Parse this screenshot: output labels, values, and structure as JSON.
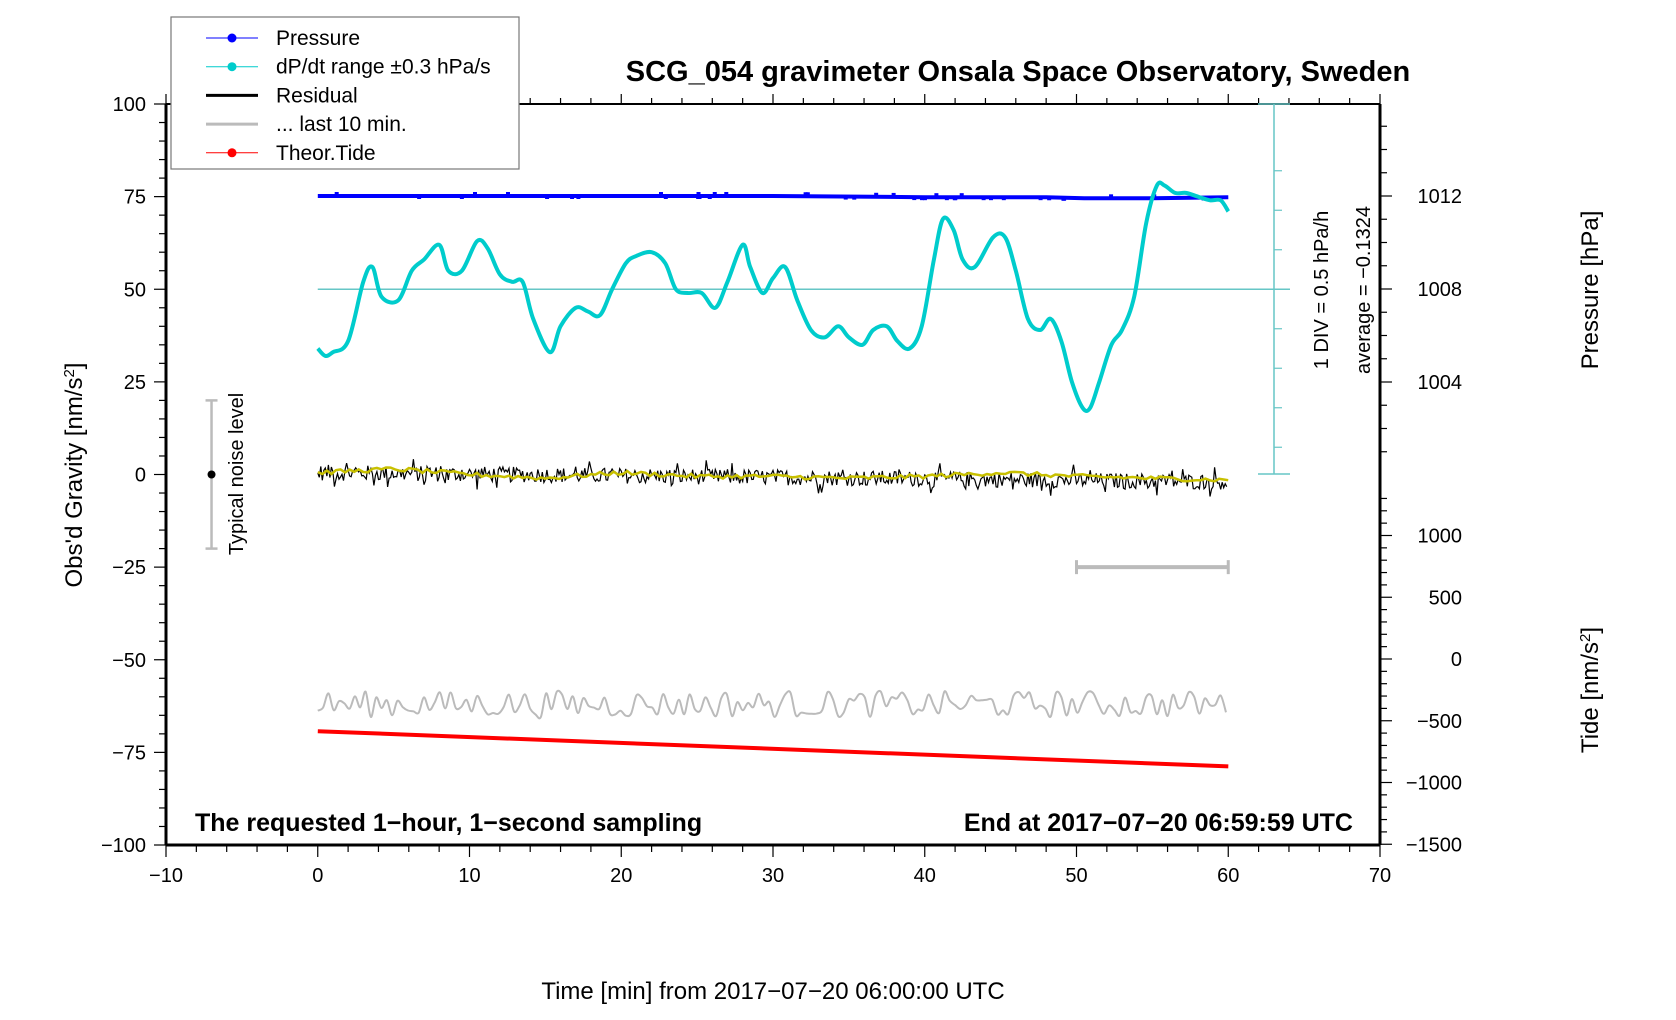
{
  "chart_data": {
    "type": "line",
    "title": "SCG_054 gravimeter Onsala Space Observatory, Sweden",
    "xlabel": "Time [min] from 2017−07−20 06:00:00 UTC",
    "ylabel": "Obs'd Gravity [nm/s²]",
    "ylabel_parts": {
      "main": "Obs'd Gravity [nm/s",
      "sup": "2",
      "end": "]"
    },
    "y2label": "Pressure [hPa]",
    "y3label_parts": {
      "main": "Tide [nm/s",
      "sup": "2",
      "end": "]"
    },
    "xlim": [
      -10,
      70
    ],
    "ylim": [
      -100,
      100
    ],
    "x_ticks": [
      "−10",
      "0",
      "10",
      "20",
      "30",
      "40",
      "50",
      "60",
      "70"
    ],
    "x_tick_values": [
      -10,
      0,
      10,
      20,
      30,
      40,
      50,
      60,
      70
    ],
    "y_ticks": [
      "100",
      "75",
      "50",
      "25",
      "0",
      "−25",
      "−50",
      "−75",
      "−100"
    ],
    "y_tick_values": [
      100,
      75,
      50,
      25,
      0,
      -25,
      -50,
      -75,
      -100
    ],
    "pressure_axis": {
      "label": "Pressure [hPa]",
      "ticks": [
        "1012",
        "1008",
        "1004"
      ],
      "tick_values": [
        1012,
        1008,
        1004
      ],
      "range": [
        1000,
        1014
      ]
    },
    "tide_axis": {
      "label": "Tide [nm/s²]",
      "ticks": [
        "1000",
        "500",
        "0",
        "−500",
        "−1000",
        "−1500"
      ],
      "tick_values": [
        1000,
        500,
        0,
        -500,
        -1000,
        -1500
      ],
      "range": [
        -1500,
        1500
      ]
    },
    "dpdt_scale": {
      "label": "1 DIV = 0.5 hPa/h",
      "average_label": "average = −0.1324",
      "reference_level": 50
    },
    "legend": {
      "position": "top-left",
      "entries": [
        {
          "label": "Pressure",
          "color": "#0000ff",
          "marker": "dot"
        },
        {
          "label": "dP/dt range ±0.3 hPa/s",
          "color": "#00cccc",
          "marker": "dot"
        },
        {
          "label": "Residual",
          "color": "#000000",
          "marker": "line"
        },
        {
          "label": "... last 10 min.",
          "color": "#bbbbbb",
          "marker": "line"
        },
        {
          "label": "Theor.Tide",
          "color": "#ff0000",
          "marker": "dot"
        }
      ]
    },
    "annotations": {
      "bottom_left": "The requested 1−hour, 1−second sampling",
      "bottom_right": "End at 2017−07−20 06:59:59 UTC",
      "noise_label": "Typical noise level",
      "noise_bar": {
        "x": -7,
        "center": 0,
        "half_range": 20
      },
      "last10_bar": {
        "x_start": 50,
        "x_end": 60,
        "y": -25
      }
    },
    "series": [
      {
        "name": "Pressure",
        "color": "#0000ff",
        "axis": "pressure",
        "x": [
          0,
          10,
          20,
          30,
          40,
          48,
          50.5,
          55,
          60
        ],
        "values": [
          1012.0,
          1012.0,
          1012.0,
          1012.0,
          1011.95,
          1011.95,
          1011.9,
          1011.9,
          1011.95
        ]
      },
      {
        "name": "dP/dt",
        "color": "#00cccc",
        "axis": "gravity-equivalent",
        "x": [
          0,
          0.5,
          1,
          2,
          3,
          3.6,
          4.2,
          5.3,
          6.2,
          7.0,
          8.0,
          8.6,
          9.5,
          10.5,
          11.2,
          12.0,
          12.8,
          13.5,
          14.2,
          15.3,
          16.0,
          17.0,
          17.8,
          18.6,
          19.4,
          20.3,
          21.0,
          22.0,
          22.9,
          23.6,
          24.4,
          25.3,
          26.2,
          27.0,
          28.0,
          28.5,
          29.3,
          30.0,
          30.8,
          31.6,
          32.5,
          33.4,
          34.3,
          35.0,
          35.9,
          36.6,
          37.5,
          38.2,
          39.0,
          39.8,
          40.6,
          41.2,
          41.9,
          42.5,
          43.3,
          44.5,
          45.3,
          46.0,
          46.8,
          47.6,
          48.3,
          49.0,
          49.7,
          50.4,
          50.9,
          51.5,
          52.3,
          53.0,
          53.8,
          54.6,
          55.3,
          55.8,
          56.5,
          57.2,
          58.0,
          58.8,
          59.5,
          60.0
        ],
        "values": [
          34,
          32,
          33,
          36,
          52,
          56,
          48,
          47,
          55,
          58,
          62,
          55,
          55,
          63,
          61,
          54,
          52,
          52,
          42,
          33,
          40,
          45,
          44,
          43,
          50,
          57,
          59,
          60,
          57,
          50,
          49,
          49,
          45,
          52,
          62,
          56,
          49,
          53,
          56,
          47,
          39,
          37,
          40,
          37,
          35,
          39,
          40,
          36,
          34,
          40,
          58,
          69,
          66,
          58,
          56,
          64,
          64,
          55,
          42,
          39,
          42,
          36,
          25,
          18,
          18,
          25,
          35,
          39,
          48,
          68,
          78,
          78,
          76,
          76,
          75,
          74,
          74,
          71
        ]
      },
      {
        "name": "Residual",
        "color": "#000000",
        "axis": "gravity",
        "x": [
          0,
          60
        ],
        "values": [
          0.5,
          -2.0
        ],
        "noise_amplitude": 3
      },
      {
        "name": "Residual smoothed",
        "color": "#c8c000",
        "axis": "gravity",
        "x": [
          0,
          5,
          10,
          15,
          20,
          25,
          30,
          35,
          40,
          45,
          50,
          55,
          60
        ],
        "values": [
          0.5,
          1.5,
          0,
          -1,
          0.5,
          -0.5,
          -0.5,
          -1,
          -0.5,
          0.5,
          -0.5,
          -1,
          -1.5
        ]
      },
      {
        "name": "Residual last 10 min (offset)",
        "color": "#bbbbbb",
        "axis": "gravity",
        "x": [
          0,
          60
        ],
        "values": [
          -62,
          -62
        ],
        "noise_amplitude": 3.5
      },
      {
        "name": "Theor.Tide",
        "color": "#ff0000",
        "axis": "tide",
        "x": [
          0,
          60
        ],
        "values": [
          -585,
          -870
        ]
      }
    ]
  }
}
